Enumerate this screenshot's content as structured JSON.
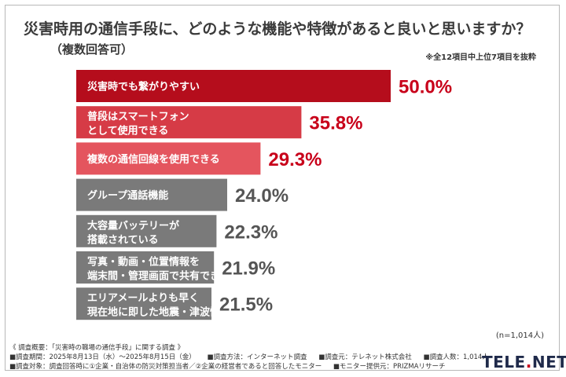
{
  "header": {
    "title": "災害時用の通信手段に、どのような機能や特徴があると良いと思いますか？",
    "subtitle": "（複数回答可）",
    "note": "※全12項目中上位7項目を抜粋"
  },
  "chart_data": {
    "type": "bar",
    "orientation": "horizontal",
    "categories": [
      [
        "災害時でも繋がりやすい"
      ],
      [
        "普段はスマートフォン",
        "として使用できる"
      ],
      [
        "複数の通信回線を使用できる"
      ],
      [
        "グループ通話機能"
      ],
      [
        "大容量バッテリーが",
        "搭載されている"
      ],
      [
        "写真・動画・位置情報を",
        "端末間・管理画面で共有できる"
      ],
      [
        "エリアメールよりも早く",
        "現在地に即した地震・津波情報が入る"
      ]
    ],
    "values": [
      50.0,
      35.8,
      29.3,
      24.0,
      22.3,
      21.9,
      21.5
    ],
    "value_labels": [
      "50.0%",
      "35.8%",
      "29.3%",
      "24.0%",
      "22.3%",
      "21.9%",
      "21.5%"
    ],
    "bar_colors": [
      "#b50d1c",
      "#d63b46",
      "#e4555e",
      "#7a7a7a",
      "#7a7a7a",
      "#7a7a7a",
      "#7a7a7a"
    ],
    "label_colors": [
      "#c8001a",
      "#c8001a",
      "#c8001a",
      "#555555",
      "#555555",
      "#555555",
      "#555555"
    ],
    "xlim": [
      0,
      50
    ],
    "grid": false,
    "legend": "none"
  },
  "n_count": "(n=1,014人)",
  "footer": {
    "line1": "《 調査概要：「災害時の職場の通信手段」に関する調査 》",
    "line2_items": [
      "■調査期間：2025年8月13日（水）〜2025年8月15日（金）",
      "■調査方法：インターネット調査",
      "■調査元：テレネット株式会社",
      "■調査人数：1,014人"
    ],
    "line3_items": [
      "■調査対象：調査回答時に①企業・自治体の防災対策担当者／②企業の経営者であると回答したモニター",
      "■モニター提供元：PRIZMAリサーチ"
    ]
  },
  "logo": {
    "text_a": "TELE",
    "text_b": ".",
    "text_c": "NET"
  }
}
